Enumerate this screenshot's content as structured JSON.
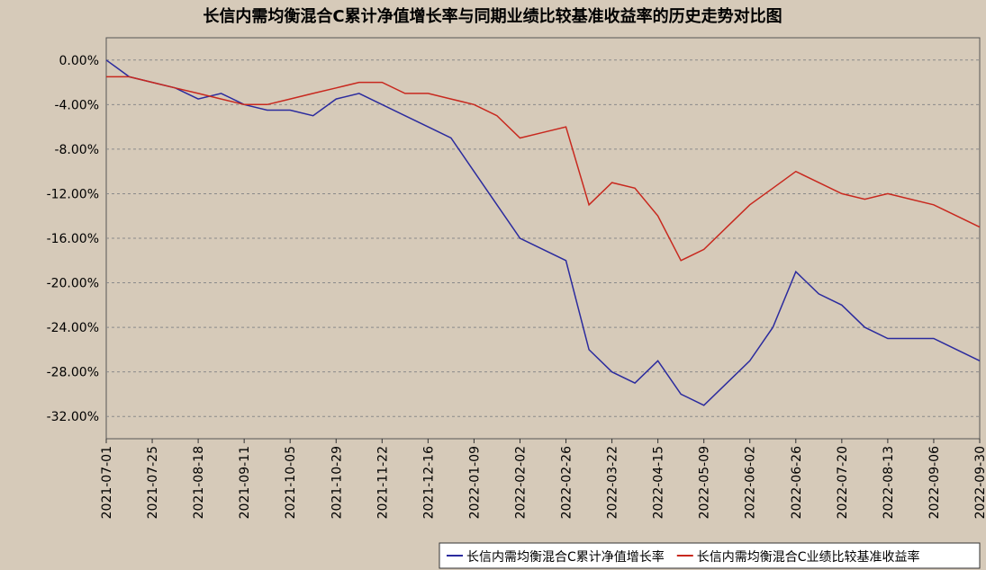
{
  "chart_data": {
    "type": "line",
    "title": "长信内需均衡混合C累计净值增长率与同期业绩比较基准收益率的历史走势对比图",
    "x": [
      "2021-07-01",
      "2021-07-13",
      "2021-07-25",
      "2021-08-06",
      "2021-08-18",
      "2021-08-30",
      "2021-09-11",
      "2021-09-23",
      "2021-10-05",
      "2021-10-17",
      "2021-10-29",
      "2021-11-10",
      "2021-11-22",
      "2021-12-04",
      "2021-12-16",
      "2021-12-28",
      "2022-01-09",
      "2022-01-21",
      "2022-02-02",
      "2022-02-14",
      "2022-02-26",
      "2022-03-10",
      "2022-03-22",
      "2022-04-03",
      "2022-04-15",
      "2022-04-27",
      "2022-05-09",
      "2022-05-21",
      "2022-06-02",
      "2022-06-14",
      "2022-06-26",
      "2022-07-08",
      "2022-07-20",
      "2022-08-01",
      "2022-08-13",
      "2022-08-25",
      "2022-09-06",
      "2022-09-18",
      "2022-09-30"
    ],
    "series": [
      {
        "name": "长信内需均衡混合C累计净值增长率",
        "color": "#2b2b9e",
        "values": [
          0,
          -1.5,
          -2,
          -2.5,
          -3.5,
          -3,
          -4,
          -4.5,
          -4.5,
          -5,
          -3.5,
          -3,
          -4,
          -5,
          -6,
          -7,
          -10,
          -13,
          -16,
          -17,
          -18,
          -26,
          -28,
          -29,
          -27,
          -30,
          -31,
          -29,
          -27,
          -24,
          -19,
          -21,
          -22,
          -24,
          -25,
          -25,
          -25,
          -26,
          -27
        ]
      },
      {
        "name": "长信内需均衡混合C业绩比较基准收益率",
        "color": "#c8281e",
        "values": [
          -1.5,
          -1.5,
          -2,
          -2.5,
          -3,
          -3.5,
          -4,
          -4,
          -3.5,
          -3,
          -2.5,
          -2,
          -2,
          -3,
          -3,
          -3.5,
          -4,
          -5,
          -7,
          -6.5,
          -6,
          -13,
          -11,
          -11.5,
          -14,
          -18,
          -17,
          -15,
          -13,
          -11.5,
          -10,
          -11,
          -12,
          -12.5,
          -12,
          -12.5,
          -13,
          -14,
          -15
        ]
      }
    ],
    "ylim": [
      -34,
      2
    ],
    "yticks": [
      {
        "value": 0,
        "label": "0.00%"
      },
      {
        "value": -4,
        "label": "-4.00%"
      },
      {
        "value": -8,
        "label": "-8.00%"
      },
      {
        "value": -12,
        "label": "-12.00%"
      },
      {
        "value": -16,
        "label": "-16.00%"
      },
      {
        "value": -20,
        "label": "-20.00%"
      },
      {
        "value": -24,
        "label": "-24.00%"
      },
      {
        "value": -28,
        "label": "-28.00%"
      },
      {
        "value": -32,
        "label": "-32.00%"
      }
    ],
    "xlim": [
      "2021-07-01",
      "2022-09-30"
    ],
    "xticks": [
      "2021-07-01",
      "2021-07-25",
      "2021-08-18",
      "2021-09-11",
      "2021-10-05",
      "2021-10-29",
      "2021-11-22",
      "2021-12-16",
      "2022-01-09",
      "2022-02-02",
      "2022-02-26",
      "2022-03-22",
      "2022-04-15",
      "2022-05-09",
      "2022-06-02",
      "2022-06-26",
      "2022-07-20",
      "2022-08-13",
      "2022-09-06",
      "2022-09-30"
    ],
    "grid": true
  }
}
